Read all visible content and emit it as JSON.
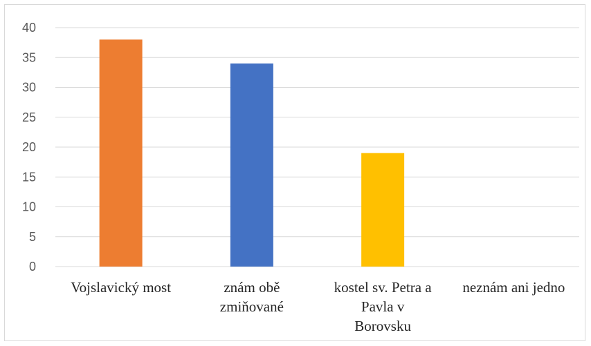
{
  "chart_data": {
    "type": "bar",
    "title": "",
    "xlabel": "",
    "ylabel": "",
    "categories": [
      [
        "Vojslavický most"
      ],
      [
        "znám obě",
        "zmiňované"
      ],
      [
        "kostel sv. Petra a",
        "Pavla v",
        "Borovsku"
      ],
      [
        "neznám ani jedno"
      ]
    ],
    "values": [
      38,
      34,
      19,
      0
    ],
    "colors": [
      "#ED7D31",
      "#4472C4",
      "#FFC000",
      "#A5A5A5"
    ],
    "ylim": [
      0,
      40
    ],
    "yticks": [
      "0",
      "5",
      "10",
      "15",
      "20",
      "25",
      "30",
      "35",
      "40"
    ],
    "grid": true,
    "legend": "none"
  }
}
